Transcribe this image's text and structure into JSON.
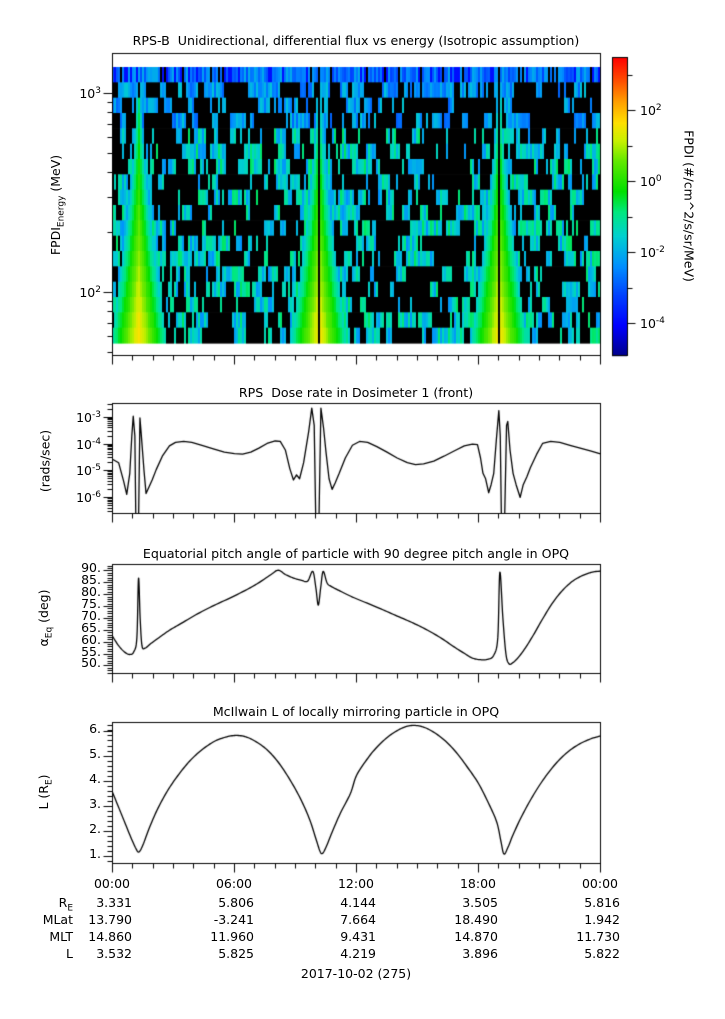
{
  "page": {
    "background": "#ffffff",
    "date_label": "2017-10-02 (275)"
  },
  "time_axis": {
    "tick_labels": [
      "00:00",
      "06:00",
      "12:00",
      "18:00",
      "00:00"
    ],
    "range_hours": [
      0,
      24
    ],
    "major_tick_every_hours": 6,
    "minor_tick_every_hours": 1
  },
  "ephemeris_table": {
    "rows": [
      {
        "label": "R_[E]",
        "values": [
          "3.331",
          "5.806",
          "4.144",
          "3.505",
          "5.816"
        ]
      },
      {
        "label": "MLat",
        "values": [
          "13.790",
          "-3.241",
          "7.664",
          "18.490",
          "1.942"
        ]
      },
      {
        "label": "MLT",
        "values": [
          "14.860",
          "11.960",
          "9.431",
          "14.870",
          "11.730"
        ]
      },
      {
        "label": "L",
        "values": [
          "3.532",
          "5.825",
          "4.219",
          "3.896",
          "5.822"
        ]
      }
    ]
  },
  "chart_data": [
    {
      "type": "heatmap",
      "title": "RPS-B  Unidirectional, differential flux vs energy (Isotropic assumption)",
      "ylabel": "FPDI_[Energy] (MeV)",
      "yscale": "log",
      "ylim_mev": [
        48.25,
        1589
      ],
      "y_tick_labels": [
        "10^3",
        "10^2"
      ],
      "y_tick_values": [
        1000,
        100
      ],
      "data_extent_mev": [
        55.5,
        1352
      ],
      "energy_bins": 18,
      "x_range_hours": [
        0,
        24
      ],
      "background": "black with scattered low-flux blue/cyan pixels; continuous blue band in highest-energy bin",
      "flux_cones": [
        {
          "center_hour": 1.32,
          "center_data_gap": false,
          "top_extent_fraction": 0.1
        },
        {
          "center_hour": 10.18,
          "center_data_gap": true,
          "top_extent_fraction": 0.0
        },
        {
          "center_hour": 19.05,
          "center_data_gap": true,
          "top_extent_fraction": 0.05
        }
      ],
      "colorbar": {
        "label": "FPDI (#/cm^2/s/sr/MeV)",
        "tick_labels": [
          "10^2",
          "10^0",
          "10^-2",
          "10^-4"
        ],
        "tick_values_log10": [
          2,
          0,
          -2,
          -4
        ],
        "minor_tick_values_log10": [
          3,
          1,
          -1,
          -3
        ],
        "range_log10": [
          -4.9,
          3.5
        ],
        "colormap": "rainbow (dark blue -> blue -> cyan -> green -> yellow -> orange -> red)"
      }
    },
    {
      "type": "line",
      "title": "RPS  Dose rate in Dosimeter 1 (front)",
      "ylabel": "(rads/sec)",
      "yscale": "log",
      "ylim": [
        2.5e-07,
        0.0033
      ],
      "y_tick_labels": [
        "10^-3",
        "10^-4",
        "10^-5",
        "10^-6"
      ],
      "y_tick_values": [
        0.001,
        0.0001,
        1e-05,
        1e-06
      ],
      "x_hours_vs_rads_per_sec": [
        [
          0,
          2.7e-05
        ],
        [
          0.3,
          2e-05
        ],
        [
          0.55,
          4e-06
        ],
        [
          0.7,
          1.3e-06
        ],
        [
          0.85,
          8e-06
        ],
        [
          0.95,
          0.0002
        ],
        [
          1.02,
          0.0011
        ],
        [
          1.1,
          0.0002
        ],
        [
          1.15,
          1e-07
        ],
        [
          1.28,
          1e-07
        ],
        [
          1.35,
          0.00095
        ],
        [
          1.42,
          0.0002
        ],
        [
          1.55,
          1e-05
        ],
        [
          1.65,
          1.4e-06
        ],
        [
          1.8,
          2.5e-06
        ],
        [
          1.95,
          4.5e-06
        ],
        [
          2.15,
          1.1e-05
        ],
        [
          2.45,
          3.5e-05
        ],
        [
          2.8,
          8.5e-05
        ],
        [
          3.1,
          0.000115
        ],
        [
          3.5,
          0.000125
        ],
        [
          3.9,
          0.000115
        ],
        [
          4.4,
          9e-05
        ],
        [
          5.0,
          6.5e-05
        ],
        [
          5.5,
          5e-05
        ],
        [
          6.0,
          4.4e-05
        ],
        [
          6.4,
          4.2e-05
        ],
        [
          6.8,
          5e-05
        ],
        [
          7.2,
          7e-05
        ],
        [
          7.6,
          0.000105
        ],
        [
          8.0,
          0.00013
        ],
        [
          8.25,
          0.000125
        ],
        [
          8.5,
          6e-05
        ],
        [
          8.72,
          1.2e-05
        ],
        [
          8.9,
          4.5e-06
        ],
        [
          9.05,
          7e-06
        ],
        [
          9.2,
          5e-06
        ],
        [
          9.4,
          2e-05
        ],
        [
          9.65,
          0.0003
        ],
        [
          9.8,
          0.0022
        ],
        [
          9.92,
          0.0005
        ],
        [
          10.0,
          1e-07
        ],
        [
          10.15,
          1e-07
        ],
        [
          10.25,
          0.0022
        ],
        [
          10.38,
          0.0004
        ],
        [
          10.5,
          5e-05
        ],
        [
          10.65,
          5e-06
        ],
        [
          10.8,
          2e-06
        ],
        [
          10.95,
          3.5e-06
        ],
        [
          11.15,
          8e-06
        ],
        [
          11.45,
          3e-05
        ],
        [
          11.8,
          9e-05
        ],
        [
          12.15,
          0.000125
        ],
        [
          12.55,
          0.000115
        ],
        [
          13.0,
          8e-05
        ],
        [
          13.5,
          5e-05
        ],
        [
          14.0,
          3e-05
        ],
        [
          14.5,
          2e-05
        ],
        [
          14.9,
          1.7e-05
        ],
        [
          15.3,
          1.8e-05
        ],
        [
          15.8,
          2.3e-05
        ],
        [
          16.3,
          3.5e-05
        ],
        [
          16.8,
          5.5e-05
        ],
        [
          17.3,
          8.5e-05
        ],
        [
          17.7,
          0.0001
        ],
        [
          17.95,
          9.5e-05
        ],
        [
          18.1,
          3e-05
        ],
        [
          18.22,
          8e-06
        ],
        [
          18.35,
          5e-06
        ],
        [
          18.5,
          1.5e-06
        ],
        [
          18.62,
          3e-06
        ],
        [
          18.75,
          8e-06
        ],
        [
          18.88,
          0.00015
        ],
        [
          19.0,
          0.0018
        ],
        [
          19.07,
          0.0002
        ],
        [
          19.13,
          1e-07
        ],
        [
          19.28,
          1e-07
        ],
        [
          19.38,
          0.0005
        ],
        [
          19.44,
          0.0007
        ],
        [
          19.55,
          6e-05
        ],
        [
          19.7,
          8e-06
        ],
        [
          19.85,
          3e-06
        ],
        [
          20.05,
          1e-06
        ],
        [
          20.2,
          3e-06
        ],
        [
          20.38,
          6e-06
        ],
        [
          20.55,
          1.3e-05
        ],
        [
          20.85,
          4e-05
        ],
        [
          21.15,
          0.000105
        ],
        [
          21.55,
          0.000125
        ],
        [
          22.0,
          0.000115
        ],
        [
          22.5,
          9e-05
        ],
        [
          23.0,
          7e-05
        ],
        [
          23.5,
          5.5e-05
        ],
        [
          24,
          4.3e-05
        ]
      ]
    },
    {
      "type": "line",
      "title": "Equatorial pitch angle of particle with 90 degree pitch angle in OPQ",
      "ylabel": "α_[Eq] (deg)",
      "yscale": "linear",
      "ylim": [
        46.8,
        92.7
      ],
      "y_tick_labels": [
        "90.",
        "85.",
        "80.",
        "75.",
        "70.",
        "65.",
        "60.",
        "55.",
        "50."
      ],
      "y_tick_values": [
        90,
        85,
        80,
        75,
        70,
        65,
        60,
        55,
        50
      ],
      "minor_tick_step": 1,
      "x_hours_vs_deg": [
        [
          0,
          62.5
        ],
        [
          0.3,
          58.5
        ],
        [
          0.6,
          55.8
        ],
        [
          0.85,
          54.8
        ],
        [
          1.05,
          56
        ],
        [
          1.2,
          62
        ],
        [
          1.28,
          87
        ],
        [
          1.36,
          70
        ],
        [
          1.45,
          58.5
        ],
        [
          1.6,
          57.5
        ],
        [
          1.9,
          59.5
        ],
        [
          2.3,
          62
        ],
        [
          2.8,
          65
        ],
        [
          3.4,
          68
        ],
        [
          4.2,
          72
        ],
        [
          5.0,
          75.5
        ],
        [
          6.0,
          79.5
        ],
        [
          7.0,
          84
        ],
        [
          7.8,
          88.5
        ],
        [
          8.15,
          90.3
        ],
        [
          8.5,
          88.5
        ],
        [
          8.9,
          87
        ],
        [
          9.3,
          86
        ],
        [
          9.6,
          85.7
        ],
        [
          9.85,
          89.8
        ],
        [
          10.0,
          83
        ],
        [
          10.12,
          75.6
        ],
        [
          10.24,
          83
        ],
        [
          10.36,
          89.8
        ],
        [
          10.55,
          85
        ],
        [
          10.75,
          83.5
        ],
        [
          11.2,
          81.5
        ],
        [
          11.8,
          79
        ],
        [
          12.5,
          76.5
        ],
        [
          13.2,
          74
        ],
        [
          14.0,
          71
        ],
        [
          14.8,
          68
        ],
        [
          15.5,
          65
        ],
        [
          16.2,
          61.5
        ],
        [
          16.8,
          58
        ],
        [
          17.3,
          55.3
        ],
        [
          17.7,
          53.3
        ],
        [
          18.1,
          52.6
        ],
        [
          18.45,
          52.8
        ],
        [
          18.75,
          54.5
        ],
        [
          18.95,
          62
        ],
        [
          19.05,
          89.5
        ],
        [
          19.2,
          70
        ],
        [
          19.35,
          55
        ],
        [
          19.5,
          50.9
        ],
        [
          19.68,
          51.3
        ],
        [
          19.95,
          53.5
        ],
        [
          20.3,
          57.5
        ],
        [
          20.7,
          63
        ],
        [
          21.1,
          69
        ],
        [
          21.6,
          76
        ],
        [
          22.1,
          81.5
        ],
        [
          22.6,
          85.5
        ],
        [
          23.1,
          88
        ],
        [
          23.6,
          89.5
        ],
        [
          24,
          89.9
        ]
      ]
    },
    {
      "type": "line",
      "title": "McIlwain L of locally mirroring particle in OPQ",
      "ylabel": "L (R_[E])",
      "yscale": "linear",
      "ylim": [
        0.7,
        6.34
      ],
      "y_tick_labels": [
        "6.",
        "5.",
        "4.",
        "3.",
        "2.",
        "1."
      ],
      "y_tick_values": [
        6,
        5,
        4,
        3,
        2,
        1
      ],
      "minor_tick_step": 0.2,
      "x_hours_vs_L": [
        [
          0,
          3.55
        ],
        [
          0.3,
          2.95
        ],
        [
          0.6,
          2.35
        ],
        [
          0.9,
          1.75
        ],
        [
          1.15,
          1.3
        ],
        [
          1.3,
          1.16
        ],
        [
          1.5,
          1.45
        ],
        [
          1.8,
          2.1
        ],
        [
          2.2,
          2.85
        ],
        [
          2.7,
          3.6
        ],
        [
          3.2,
          4.2
        ],
        [
          3.8,
          4.8
        ],
        [
          4.4,
          5.25
        ],
        [
          5.0,
          5.58
        ],
        [
          5.5,
          5.74
        ],
        [
          6.0,
          5.82
        ],
        [
          6.5,
          5.78
        ],
        [
          7.0,
          5.6
        ],
        [
          7.6,
          5.25
        ],
        [
          8.2,
          4.7
        ],
        [
          8.8,
          3.95
        ],
        [
          9.3,
          3.2
        ],
        [
          9.7,
          2.45
        ],
        [
          10.0,
          1.7
        ],
        [
          10.2,
          1.2
        ],
        [
          10.32,
          1.1
        ],
        [
          10.5,
          1.35
        ],
        [
          10.8,
          1.95
        ],
        [
          11.2,
          2.7
        ],
        [
          11.7,
          3.5
        ],
        [
          12.0,
          4.22
        ],
        [
          12.5,
          4.85
        ],
        [
          13.0,
          5.35
        ],
        [
          13.6,
          5.8
        ],
        [
          14.2,
          6.1
        ],
        [
          14.7,
          6.22
        ],
        [
          15.2,
          6.18
        ],
        [
          15.7,
          6.0
        ],
        [
          16.3,
          5.65
        ],
        [
          16.9,
          5.15
        ],
        [
          17.5,
          4.5
        ],
        [
          18.0,
          3.9
        ],
        [
          18.5,
          3.1
        ],
        [
          18.9,
          2.35
        ],
        [
          19.1,
          1.6
        ],
        [
          19.25,
          1.08
        ],
        [
          19.45,
          1.35
        ],
        [
          19.7,
          1.85
        ],
        [
          20.1,
          2.55
        ],
        [
          20.6,
          3.3
        ],
        [
          21.1,
          3.95
        ],
        [
          21.7,
          4.6
        ],
        [
          22.3,
          5.1
        ],
        [
          22.9,
          5.45
        ],
        [
          23.5,
          5.68
        ],
        [
          24,
          5.8
        ]
      ]
    }
  ]
}
